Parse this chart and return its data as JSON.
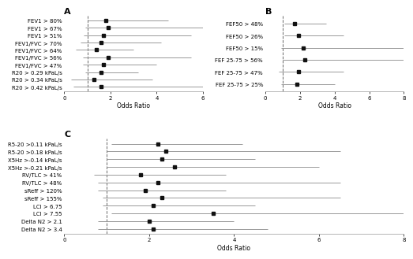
{
  "panel_A": {
    "title": "A",
    "labels": [
      "FEV1 > 80%",
      "FEV1 > 67%",
      "FEV1 > 51%",
      "FEV1/FVC > 70%",
      "FEV1/FVC > 64%",
      "FEV1/FVC > 56%",
      "FEV1/FVC > 47%",
      "R20 > 0.29 kPaL/s",
      "R20 > 0.34 kPaL/s",
      "R20 > 0.42 kPaL/s"
    ],
    "or": [
      1.8,
      1.9,
      1.7,
      1.6,
      1.4,
      1.9,
      1.7,
      1.6,
      1.3,
      1.6
    ],
    "ci_low": [
      1.0,
      0.9,
      0.85,
      0.7,
      0.5,
      0.8,
      0.8,
      0.9,
      0.3,
      0.4
    ],
    "ci_high": [
      4.5,
      6.2,
      5.5,
      4.2,
      3.0,
      5.5,
      4.0,
      3.2,
      3.8,
      6.0
    ],
    "xmin": 0,
    "xmax": 6,
    "xticks": [
      0,
      2,
      4,
      6
    ],
    "xlabel": "Odds Ratio",
    "vline": 1.0
  },
  "panel_B": {
    "title": "B",
    "labels": [
      "FEF50 > 48%",
      "FEF50 > 26%",
      "FEF50 > 15%",
      "FEF 25-75 > 56%",
      "FEF 25-75 > 47%",
      "FEF 25-75 > 25%"
    ],
    "or": [
      1.7,
      1.9,
      2.2,
      2.3,
      1.9,
      1.85
    ],
    "ci_low": [
      1.1,
      1.1,
      0.9,
      1.0,
      0.8,
      0.9
    ],
    "ci_high": [
      3.5,
      4.5,
      8.0,
      8.5,
      4.5,
      4.0
    ],
    "xmin": 0,
    "xmax": 8,
    "xticks": [
      0,
      2,
      4,
      6,
      8
    ],
    "xlabel": "Odds Ratio",
    "vline": 1.0
  },
  "panel_C": {
    "title": "C",
    "labels": [
      "R5-20 >0.11 kPaL/s",
      "R5-20 >0.18 kPaL/s",
      "X5Hz >-0.14 kPaL/s",
      "X5Hz >-0.21 kPaL/s",
      "RV/TLC > 41%",
      "RV/TLC > 48%",
      "sReff > 120%",
      "sReff > 155%",
      "LCI > 6.75",
      "LCI > 7.55",
      "Delta N2 > 2.1",
      "Delta N2 > 3.4"
    ],
    "or": [
      2.2,
      2.4,
      2.3,
      2.6,
      1.8,
      2.2,
      1.9,
      2.3,
      2.1,
      3.5,
      2.0,
      2.1
    ],
    "ci_low": [
      1.1,
      1.0,
      1.0,
      1.0,
      0.7,
      0.8,
      0.8,
      0.9,
      0.9,
      1.1,
      0.8,
      0.8
    ],
    "ci_high": [
      4.2,
      6.5,
      4.5,
      6.0,
      3.8,
      6.5,
      3.8,
      6.5,
      4.5,
      8.5,
      4.0,
      4.8
    ],
    "xmin": 0,
    "xmax": 8,
    "xticks": [
      0,
      2,
      4,
      6,
      8
    ],
    "xlabel": "Odds Ratio",
    "vline": 1.0
  },
  "marker_color": "#111111",
  "line_color": "#999999",
  "vline_color": "#666666",
  "bg_color": "#ffffff",
  "label_fontsize": 5.0,
  "axis_label_fontsize": 5.5,
  "tick_fontsize": 5.0,
  "title_fontsize": 8,
  "marker_size": 3.0,
  "line_width": 0.7
}
